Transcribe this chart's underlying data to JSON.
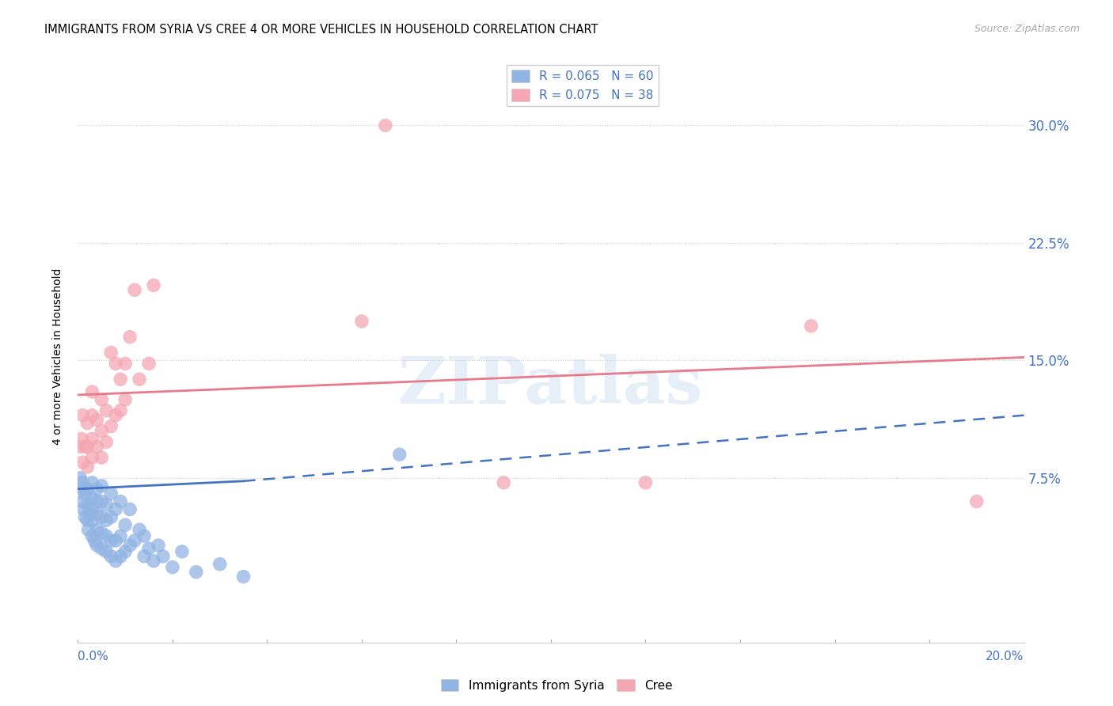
{
  "title": "IMMIGRANTS FROM SYRIA VS CREE 4 OR MORE VEHICLES IN HOUSEHOLD CORRELATION CHART",
  "source": "Source: ZipAtlas.com",
  "ylabel": "4 or more Vehicles in Household",
  "xmin": 0.0,
  "xmax": 0.2,
  "ymin": -0.03,
  "ymax": 0.335,
  "ytick_vals": [
    0.075,
    0.15,
    0.225,
    0.3
  ],
  "ytick_labels": [
    "7.5%",
    "15.0%",
    "22.5%",
    "30.0%"
  ],
  "watermark": "ZIPatlas",
  "blue_scatter_x": [
    0.0005,
    0.0008,
    0.001,
    0.001,
    0.0012,
    0.0015,
    0.0015,
    0.002,
    0.002,
    0.002,
    0.0022,
    0.0025,
    0.003,
    0.003,
    0.003,
    0.003,
    0.003,
    0.0035,
    0.004,
    0.004,
    0.004,
    0.004,
    0.004,
    0.005,
    0.005,
    0.005,
    0.005,
    0.005,
    0.006,
    0.006,
    0.006,
    0.006,
    0.007,
    0.007,
    0.007,
    0.007,
    0.008,
    0.008,
    0.008,
    0.009,
    0.009,
    0.009,
    0.01,
    0.01,
    0.011,
    0.011,
    0.012,
    0.013,
    0.014,
    0.014,
    0.015,
    0.016,
    0.017,
    0.018,
    0.02,
    0.022,
    0.025,
    0.03,
    0.035,
    0.068
  ],
  "blue_scatter_y": [
    0.075,
    0.068,
    0.06,
    0.072,
    0.055,
    0.05,
    0.065,
    0.048,
    0.058,
    0.068,
    0.042,
    0.052,
    0.038,
    0.048,
    0.055,
    0.062,
    0.072,
    0.035,
    0.032,
    0.042,
    0.052,
    0.06,
    0.068,
    0.03,
    0.04,
    0.05,
    0.06,
    0.07,
    0.028,
    0.038,
    0.048,
    0.058,
    0.025,
    0.035,
    0.05,
    0.065,
    0.022,
    0.035,
    0.055,
    0.025,
    0.038,
    0.06,
    0.028,
    0.045,
    0.032,
    0.055,
    0.035,
    0.042,
    0.025,
    0.038,
    0.03,
    0.022,
    0.032,
    0.025,
    0.018,
    0.028,
    0.015,
    0.02,
    0.012,
    0.09
  ],
  "pink_scatter_x": [
    0.0005,
    0.0008,
    0.001,
    0.001,
    0.0015,
    0.002,
    0.002,
    0.002,
    0.003,
    0.003,
    0.003,
    0.003,
    0.004,
    0.004,
    0.005,
    0.005,
    0.005,
    0.006,
    0.006,
    0.007,
    0.007,
    0.008,
    0.008,
    0.009,
    0.009,
    0.01,
    0.01,
    0.011,
    0.012,
    0.013,
    0.015,
    0.016,
    0.06,
    0.065,
    0.09,
    0.12,
    0.155,
    0.19
  ],
  "pink_scatter_y": [
    0.095,
    0.1,
    0.085,
    0.115,
    0.095,
    0.082,
    0.095,
    0.11,
    0.088,
    0.1,
    0.115,
    0.13,
    0.095,
    0.112,
    0.088,
    0.105,
    0.125,
    0.098,
    0.118,
    0.108,
    0.155,
    0.115,
    0.148,
    0.118,
    0.138,
    0.125,
    0.148,
    0.165,
    0.195,
    0.138,
    0.148,
    0.198,
    0.175,
    0.3,
    0.072,
    0.072,
    0.172,
    0.06
  ],
  "blue_solid_line_x": [
    0.0,
    0.035
  ],
  "blue_solid_line_y": [
    0.068,
    0.073
  ],
  "blue_dashed_line_x": [
    0.035,
    0.2
  ],
  "blue_dashed_line_y": [
    0.073,
    0.115
  ],
  "pink_solid_line_x": [
    0.0,
    0.2
  ],
  "pink_solid_line_y": [
    0.128,
    0.152
  ],
  "blue_color": "#92b4e3",
  "pink_color": "#f4a7b3",
  "blue_line_color": "#4472c4",
  "pink_line_color": "#e87a8c",
  "legend1_label": "R = 0.065   N = 60",
  "legend2_label": "R = 0.075   N = 38",
  "bottom_legend1": "Immigrants from Syria",
  "bottom_legend2": "Cree"
}
